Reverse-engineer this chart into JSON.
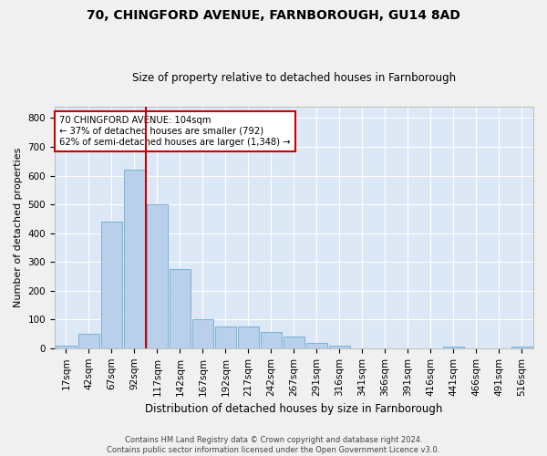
{
  "title1": "70, CHINGFORD AVENUE, FARNBOROUGH, GU14 8AD",
  "title2": "Size of property relative to detached houses in Farnborough",
  "xlabel": "Distribution of detached houses by size in Farnborough",
  "ylabel": "Number of detached properties",
  "categories": [
    "17sqm",
    "42sqm",
    "67sqm",
    "92sqm",
    "117sqm",
    "142sqm",
    "167sqm",
    "192sqm",
    "217sqm",
    "242sqm",
    "267sqm",
    "291sqm",
    "316sqm",
    "341sqm",
    "366sqm",
    "391sqm",
    "416sqm",
    "441sqm",
    "466sqm",
    "491sqm",
    "516sqm"
  ],
  "values": [
    10,
    50,
    440,
    620,
    500,
    275,
    100,
    75,
    75,
    55,
    40,
    20,
    10,
    0,
    0,
    0,
    0,
    5,
    0,
    0,
    5
  ],
  "bar_color": "#b8d0ea",
  "bar_edge_color": "#6aaad4",
  "annotation_text": "70 CHINGFORD AVENUE: 104sqm\n← 37% of detached houses are smaller (792)\n62% of semi-detached houses are larger (1,348) →",
  "annotation_box_facecolor": "#ffffff",
  "annotation_border_color": "#cc0000",
  "red_line_x": 3.5,
  "ylim": [
    0,
    840
  ],
  "yticks": [
    0,
    100,
    200,
    300,
    400,
    500,
    600,
    700,
    800
  ],
  "bg_color": "#dce8f5",
  "grid_color": "#ffffff",
  "footer1": "Contains HM Land Registry data © Crown copyright and database right 2024.",
  "footer2": "Contains public sector information licensed under the Open Government Licence v3.0.",
  "title1_fontsize": 10,
  "title2_fontsize": 8.5,
  "xlabel_fontsize": 8.5,
  "ylabel_fontsize": 8,
  "tick_fontsize": 7.5,
  "footer_fontsize": 6.0
}
